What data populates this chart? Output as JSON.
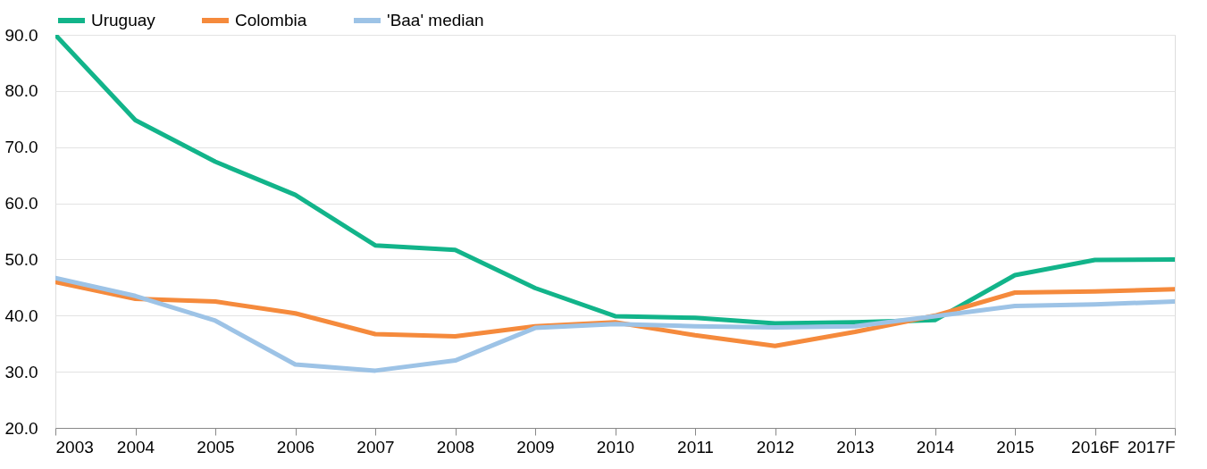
{
  "chart_data": {
    "type": "line",
    "categories": [
      "2003",
      "2004",
      "2005",
      "2006",
      "2007",
      "2008",
      "2009",
      "2010",
      "2011",
      "2012",
      "2013",
      "2014",
      "2015",
      "2016F",
      "2017F"
    ],
    "series": [
      {
        "name": "Uruguay",
        "color": "#12b48a",
        "values": [
          90.0,
          74.8,
          67.4,
          61.5,
          52.5,
          51.7,
          44.9,
          39.9,
          39.6,
          38.6,
          38.8,
          39.2,
          47.2,
          49.9,
          50.0
        ]
      },
      {
        "name": "Colombia",
        "color": "#f58a3c",
        "values": [
          46.0,
          43.0,
          42.5,
          40.4,
          36.7,
          36.3,
          38.1,
          38.8,
          36.5,
          34.6,
          37.1,
          40.0,
          44.1,
          44.3,
          44.7
        ]
      },
      {
        "name": "'Baa' median",
        "color": "#9dc3e6",
        "values": [
          46.7,
          43.5,
          39.1,
          31.3,
          30.2,
          32.0,
          37.8,
          38.5,
          38.1,
          37.9,
          38.1,
          39.9,
          41.7,
          42.0,
          42.5
        ]
      }
    ],
    "ylim": [
      20,
      90
    ],
    "yticks": [
      {
        "value": 20,
        "label": "20.0"
      },
      {
        "value": 30,
        "label": "30.0"
      },
      {
        "value": 40,
        "label": "40.0"
      },
      {
        "value": 50,
        "label": "50.0"
      },
      {
        "value": 60,
        "label": "60.0"
      },
      {
        "value": 70,
        "label": "70.0"
      },
      {
        "value": 80,
        "label": "80.0"
      },
      {
        "value": 90,
        "label": "90.0"
      }
    ],
    "grid": "y",
    "legend": "top",
    "line_style": "solid",
    "marker": "none"
  }
}
